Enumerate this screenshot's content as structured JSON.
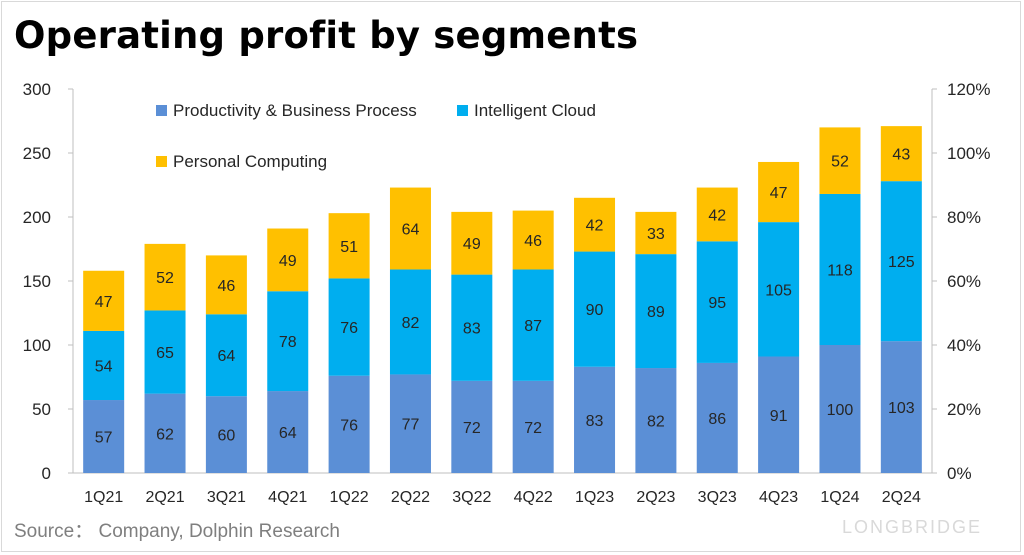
{
  "title": "Operating profit by segments",
  "source": "Source：  Company, Dolphin Research",
  "watermark": "LONGBRIDGE",
  "chart_data": {
    "type": "bar",
    "stacked": true,
    "categories": [
      "1Q21",
      "2Q21",
      "3Q21",
      "4Q21",
      "1Q22",
      "2Q22",
      "3Q22",
      "4Q22",
      "1Q23",
      "2Q23",
      "3Q23",
      "4Q23",
      "1Q24",
      "2Q24"
    ],
    "series": [
      {
        "name": "Productivity & Business Process",
        "color": "#5B8FD6",
        "values": [
          57,
          62,
          60,
          64,
          76,
          77,
          72,
          72,
          83,
          82,
          86,
          91,
          100,
          103
        ]
      },
      {
        "name": "Intelligent Cloud",
        "color": "#00AEEF",
        "values": [
          54,
          65,
          64,
          78,
          76,
          82,
          83,
          87,
          90,
          89,
          95,
          105,
          118,
          125
        ]
      },
      {
        "name": "Personal Computing",
        "color": "#FFC000",
        "values": [
          47,
          52,
          46,
          49,
          51,
          64,
          49,
          46,
          42,
          33,
          42,
          47,
          52,
          43
        ]
      }
    ],
    "ylim": [
      0,
      300
    ],
    "yticks": [
      0,
      50,
      100,
      150,
      200,
      250,
      300
    ],
    "y2lim": [
      0,
      120
    ],
    "y2ticks": [
      "0%",
      "20%",
      "40%",
      "60%",
      "80%",
      "100%",
      "120%"
    ],
    "legend_position": "top-left",
    "grid": false
  }
}
